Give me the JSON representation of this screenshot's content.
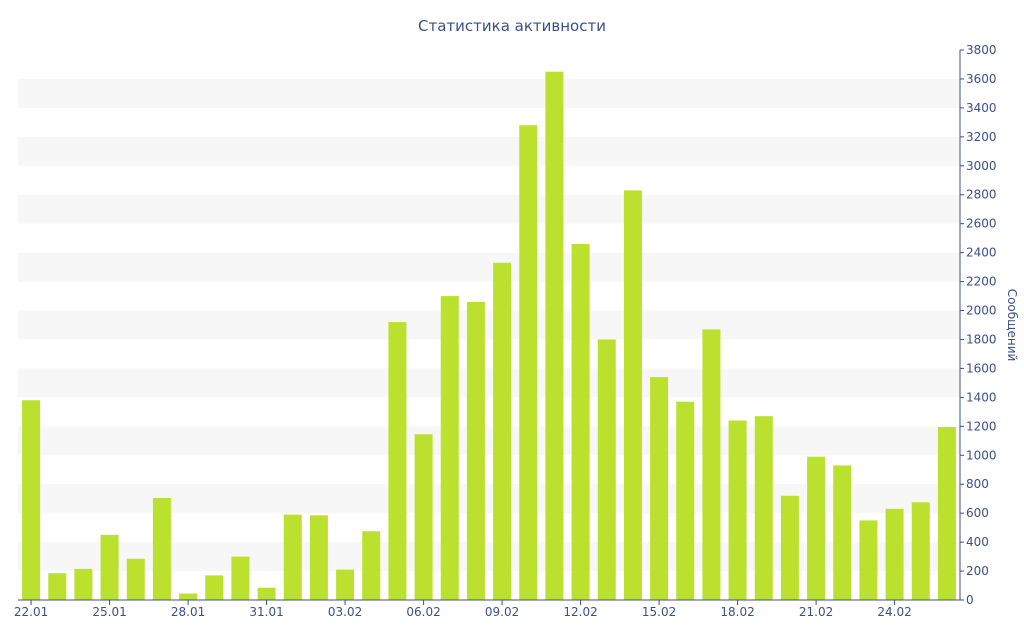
{
  "chart_data": {
    "type": "bar",
    "title": "Статистика активности",
    "ylabel": "Сообщений",
    "xlabel": "",
    "ylim": [
      0,
      3800
    ],
    "y_ticks": [
      0,
      200,
      400,
      600,
      800,
      1000,
      1200,
      1400,
      1600,
      1800,
      2000,
      2200,
      2400,
      2600,
      2800,
      3000,
      3200,
      3400,
      3600,
      3800
    ],
    "y_axis_side": "right",
    "alternating_bands": true,
    "bar_color": "#bbe12e",
    "text_color": "#3d4f8c",
    "band_color": "#f7f7f7",
    "categories": [
      "22.01",
      "23.01",
      "24.01",
      "25.01",
      "26.01",
      "27.01",
      "28.01",
      "29.01",
      "30.01",
      "31.01",
      "01.02",
      "02.02",
      "03.02",
      "04.02",
      "05.02",
      "06.02",
      "07.02",
      "08.02",
      "09.02",
      "10.02",
      "11.02",
      "12.02",
      "13.02",
      "14.02",
      "15.02",
      "16.02",
      "17.02",
      "18.02",
      "19.02",
      "20.02",
      "21.02",
      "22.02",
      "23.02",
      "24.02",
      "25.02",
      "26.02"
    ],
    "values": [
      1380,
      185,
      215,
      450,
      285,
      705,
      45,
      170,
      300,
      85,
      590,
      585,
      210,
      475,
      1920,
      1145,
      2100,
      2060,
      2330,
      3280,
      3650,
      2460,
      1800,
      2830,
      1540,
      1370,
      1870,
      1240,
      1270,
      720,
      990,
      930,
      550,
      630,
      675,
      1195
    ],
    "x_tick_labels": [
      "22.01",
      "25.01",
      "28.01",
      "31.01",
      "03.02",
      "06.02",
      "09.02",
      "12.02",
      "15.02",
      "18.02",
      "21.02",
      "24.02"
    ]
  }
}
